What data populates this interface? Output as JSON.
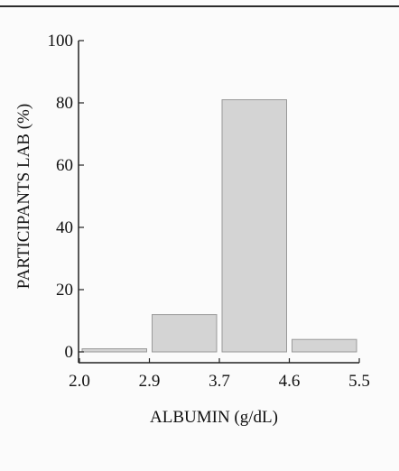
{
  "chart_data": {
    "type": "bar",
    "xlabel": "ALBUMIN (g/dL)",
    "ylabel": "PARTICIPANTS LAB (%)",
    "x_ticks": [
      "2.0",
      "2.9",
      "3.7",
      "4.6",
      "5.5"
    ],
    "y_ticks": [
      0,
      20,
      40,
      60,
      80,
      100
    ],
    "ylim": [
      0,
      100
    ],
    "bins": [
      {
        "from": "2.0",
        "to": "2.9",
        "value": 1
      },
      {
        "from": "2.9",
        "to": "3.7",
        "value": 12
      },
      {
        "from": "3.7",
        "to": "4.6",
        "value": 81
      },
      {
        "from": "4.6",
        "to": "5.5",
        "value": 4
      }
    ],
    "bar_color": "#d4d4d4",
    "bar_edge_color": "#9a9a9a",
    "grid": false
  }
}
